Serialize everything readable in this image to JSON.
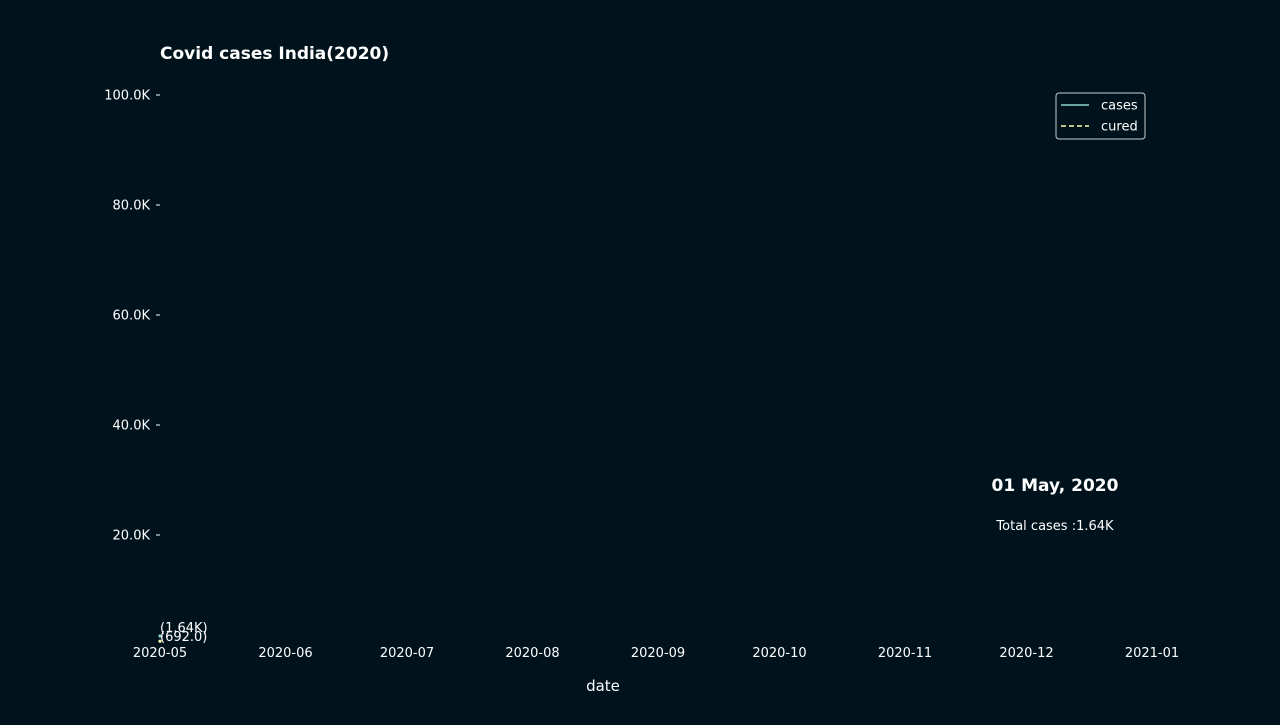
{
  "chart_data": {
    "type": "line",
    "title": "Covid cases India(2020)",
    "xlabel": "date",
    "ylabel": "",
    "x_type": "date",
    "xlim": [
      "2020-05-01",
      "2021-01-01"
    ],
    "ylim": [
      0,
      100000
    ],
    "x_ticks": [
      "2020-05-01",
      "2020-06-01",
      "2020-07-01",
      "2020-08-01",
      "2020-09-01",
      "2020-10-01",
      "2020-11-01",
      "2020-12-01",
      "2021-01-01"
    ],
    "x_tick_labels": [
      "2020-05",
      "2020-06",
      "2020-07",
      "2020-08",
      "2020-09",
      "2020-10",
      "2020-11",
      "2020-12",
      "2021-01"
    ],
    "y_ticks": [
      20000,
      40000,
      60000,
      80000,
      100000
    ],
    "y_tick_labels": [
      "20.0K",
      "40.0K",
      "60.0K",
      "80.0K",
      "100.0K"
    ],
    "grid": false,
    "legend": "top-right",
    "series": [
      {
        "name": "cases",
        "color": "#8dd3c7",
        "style": "solid",
        "points": [
          {
            "x": "2020-05-01",
            "y": 1640,
            "label": "(1.64K)"
          }
        ]
      },
      {
        "name": "cured",
        "color": "#ffffb3",
        "style": "dashed",
        "points": [
          {
            "x": "2020-05-01",
            "y": 692,
            "label": "(692.0)"
          }
        ]
      }
    ],
    "annotations": {
      "date": "01 May, 2020",
      "total": "Total cases :1.64K"
    }
  }
}
